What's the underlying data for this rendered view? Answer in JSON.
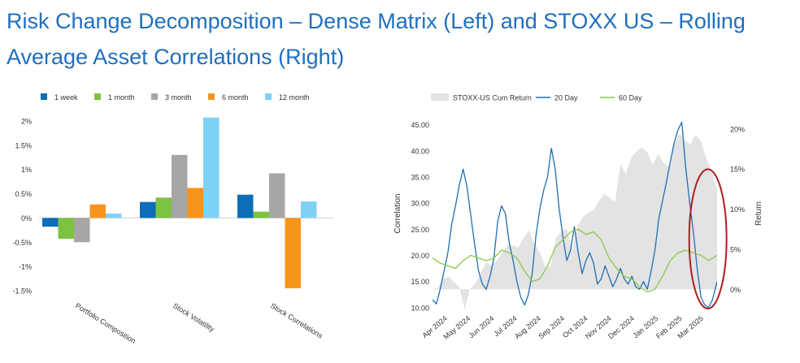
{
  "title": {
    "line1": "Risk Change Decomposition – Dense Matrix (Left) and STOXX US – Rolling",
    "line2": "Average Asset Correlations (Right)"
  },
  "chart_data": [
    {
      "type": "bar",
      "categories": [
        "Portfolio Composition",
        "Stock Volatility",
        "Stock Correlations"
      ],
      "series": [
        {
          "name": "1 week",
          "color": "#0e6db6",
          "values": [
            -0.18,
            0.33,
            0.48
          ]
        },
        {
          "name": "1 month",
          "color": "#7dc242",
          "values": [
            -0.43,
            0.42,
            0.13
          ]
        },
        {
          "name": "3 month",
          "color": "#a6a6a6",
          "values": [
            -0.5,
            1.3,
            0.92
          ]
        },
        {
          "name": "6 month",
          "color": "#f7941d",
          "values": [
            0.28,
            0.62,
            -1.45
          ]
        },
        {
          "name": "12 month",
          "color": "#7fd0f5",
          "values": [
            0.09,
            2.07,
            0.34
          ]
        }
      ],
      "yticks": [
        "2%",
        "1.5%",
        "1%",
        "0.5%",
        "0%",
        "-0.5%",
        "-1%",
        "-1.5%"
      ],
      "ytick_values": [
        2,
        1.5,
        1,
        0.5,
        0,
        -0.5,
        -1,
        -1.5
      ],
      "ylim": [
        -1.5,
        2.1
      ],
      "legend": "top",
      "grid": false
    },
    {
      "type": "line",
      "legend": "top",
      "grid": false,
      "ylabel_left": "Correlation",
      "ylabel_right": "Return",
      "ylim_left": [
        9.5,
        46.5
      ],
      "ylim_right": [
        -2.6,
        21.5
      ],
      "yticks_left": [
        "45.00",
        "40.00",
        "35.00",
        "30.00",
        "25.00",
        "20.00",
        "15.00",
        "10.00"
      ],
      "ytick_values_left": [
        45,
        40,
        35,
        30,
        25,
        20,
        15,
        10
      ],
      "yticks_right": [
        "20%",
        "15%",
        "10%",
        "5%",
        "0%"
      ],
      "ytick_values_right": [
        20,
        15,
        10,
        5,
        0
      ],
      "x_range": [
        "2024-03-08",
        "2025-03-14"
      ],
      "xticks": [
        "Apr 2024",
        "May 2024",
        "Jun 2024",
        "Jul 2024",
        "Aug 2024",
        "Sep 2024",
        "Oct 2024",
        "Nov 2024",
        "Dec 2024",
        "Jan 2025",
        "Feb 2025",
        "Mar 2025"
      ],
      "xtick_dates": [
        "2024-04-01",
        "2024-05-01",
        "2024-06-01",
        "2024-07-01",
        "2024-08-01",
        "2024-09-01",
        "2024-10-01",
        "2024-11-01",
        "2024-12-01",
        "2025-01-01",
        "2025-02-01",
        "2025-03-01"
      ],
      "highlight": {
        "shape": "ellipse",
        "color": "#b01e1e",
        "center_date": "2025-03-02",
        "y_min": 9.8,
        "y_max": 36.5
      },
      "series": [
        {
          "name": "STOXX-US Cum Return",
          "axis": "right",
          "style": "area",
          "color": "#e3e3e3",
          "points": [
            [
              "2024-03-08",
              0.0
            ],
            [
              "2024-03-15",
              0.2
            ],
            [
              "2024-03-22",
              1.3
            ],
            [
              "2024-03-29",
              1.6
            ],
            [
              "2024-04-05",
              0.9
            ],
            [
              "2024-04-12",
              0.3
            ],
            [
              "2024-04-19",
              -2.5
            ],
            [
              "2024-04-26",
              0.1
            ],
            [
              "2024-05-03",
              0.7
            ],
            [
              "2024-05-10",
              2.0
            ],
            [
              "2024-05-17",
              3.4
            ],
            [
              "2024-05-24",
              3.0
            ],
            [
              "2024-05-31",
              3.6
            ],
            [
              "2024-06-07",
              4.6
            ],
            [
              "2024-06-14",
              5.6
            ],
            [
              "2024-06-21",
              5.5
            ],
            [
              "2024-06-28",
              5.2
            ],
            [
              "2024-07-05",
              6.5
            ],
            [
              "2024-07-12",
              7.3
            ],
            [
              "2024-07-19",
              5.6
            ],
            [
              "2024-07-26",
              4.6
            ],
            [
              "2024-08-02",
              2.8
            ],
            [
              "2024-08-09",
              2.9
            ],
            [
              "2024-08-16",
              6.5
            ],
            [
              "2024-08-23",
              7.2
            ],
            [
              "2024-08-30",
              7.6
            ],
            [
              "2024-09-06",
              4.9
            ],
            [
              "2024-09-13",
              7.9
            ],
            [
              "2024-09-20",
              9.0
            ],
            [
              "2024-09-27",
              9.6
            ],
            [
              "2024-10-04",
              9.9
            ],
            [
              "2024-10-11",
              11.0
            ],
            [
              "2024-10-18",
              11.9
            ],
            [
              "2024-10-25",
              11.4
            ],
            [
              "2024-11-01",
              10.9
            ],
            [
              "2024-11-08",
              15.6
            ],
            [
              "2024-11-15",
              14.4
            ],
            [
              "2024-11-22",
              16.4
            ],
            [
              "2024-11-29",
              17.2
            ],
            [
              "2024-12-06",
              17.7
            ],
            [
              "2024-12-13",
              17.1
            ],
            [
              "2024-12-20",
              15.5
            ],
            [
              "2024-12-27",
              16.9
            ],
            [
              "2025-01-03",
              15.8
            ],
            [
              "2025-01-10",
              15.3
            ],
            [
              "2025-01-17",
              18.0
            ],
            [
              "2025-01-24",
              19.4
            ],
            [
              "2025-01-31",
              18.6
            ],
            [
              "2025-02-07",
              18.1
            ],
            [
              "2025-02-14",
              19.3
            ],
            [
              "2025-02-21",
              18.5
            ],
            [
              "2025-02-28",
              16.3
            ],
            [
              "2025-03-07",
              14.8
            ],
            [
              "2025-03-14",
              12.4
            ]
          ]
        },
        {
          "name": "20 Day",
          "axis": "left",
          "style": "line",
          "color": "#1f6fb5",
          "points": [
            [
              "2024-03-08",
              11.5
            ],
            [
              "2024-03-13",
              10.7
            ],
            [
              "2024-03-18",
              13.5
            ],
            [
              "2024-03-23",
              17.0
            ],
            [
              "2024-03-28",
              20.5
            ],
            [
              "2024-04-02",
              26.0
            ],
            [
              "2024-04-07",
              29.5
            ],
            [
              "2024-04-12",
              33.5
            ],
            [
              "2024-04-17",
              36.5
            ],
            [
              "2024-04-22",
              33.0
            ],
            [
              "2024-04-27",
              27.5
            ],
            [
              "2024-05-02",
              22.0
            ],
            [
              "2024-05-07",
              17.0
            ],
            [
              "2024-05-12",
              14.5
            ],
            [
              "2024-05-17",
              13.5
            ],
            [
              "2024-05-22",
              16.0
            ],
            [
              "2024-05-27",
              19.5
            ],
            [
              "2024-06-01",
              26.5
            ],
            [
              "2024-06-06",
              29.5
            ],
            [
              "2024-06-11",
              28.0
            ],
            [
              "2024-06-16",
              22.5
            ],
            [
              "2024-06-21",
              19.0
            ],
            [
              "2024-06-26",
              15.0
            ],
            [
              "2024-07-01",
              12.0
            ],
            [
              "2024-07-06",
              10.5
            ],
            [
              "2024-07-11",
              12.5
            ],
            [
              "2024-07-16",
              16.5
            ],
            [
              "2024-07-21",
              24.0
            ],
            [
              "2024-07-26",
              29.0
            ],
            [
              "2024-07-31",
              32.5
            ],
            [
              "2024-08-05",
              35.0
            ],
            [
              "2024-08-10",
              40.5
            ],
            [
              "2024-08-15",
              36.5
            ],
            [
              "2024-08-20",
              29.0
            ],
            [
              "2024-08-25",
              23.5
            ],
            [
              "2024-08-30",
              19.0
            ],
            [
              "2024-09-04",
              21.0
            ],
            [
              "2024-09-09",
              25.5
            ],
            [
              "2024-09-14",
              20.5
            ],
            [
              "2024-09-19",
              16.5
            ],
            [
              "2024-09-24",
              19.0
            ],
            [
              "2024-09-29",
              20.5
            ],
            [
              "2024-10-04",
              18.5
            ],
            [
              "2024-10-09",
              14.5
            ],
            [
              "2024-10-14",
              15.5
            ],
            [
              "2024-10-19",
              18.0
            ],
            [
              "2024-10-24",
              16.0
            ],
            [
              "2024-10-29",
              14.0
            ],
            [
              "2024-11-03",
              15.5
            ],
            [
              "2024-11-08",
              17.5
            ],
            [
              "2024-11-13",
              15.5
            ],
            [
              "2024-11-18",
              14.5
            ],
            [
              "2024-11-23",
              16.0
            ],
            [
              "2024-11-28",
              14.0
            ],
            [
              "2024-12-03",
              13.5
            ],
            [
              "2024-12-08",
              15.0
            ],
            [
              "2024-12-13",
              13.5
            ],
            [
              "2024-12-18",
              17.0
            ],
            [
              "2024-12-23",
              21.0
            ],
            [
              "2024-12-28",
              27.0
            ],
            [
              "2025-01-02",
              30.5
            ],
            [
              "2025-01-07",
              34.0
            ],
            [
              "2025-01-12",
              38.0
            ],
            [
              "2025-01-17",
              41.5
            ],
            [
              "2025-01-22",
              44.0
            ],
            [
              "2025-01-27",
              45.5
            ],
            [
              "2025-02-01",
              37.0
            ],
            [
              "2025-02-06",
              30.5
            ],
            [
              "2025-02-11",
              24.5
            ],
            [
              "2025-02-16",
              17.5
            ],
            [
              "2025-02-21",
              12.0
            ],
            [
              "2025-02-26",
              10.5
            ],
            [
              "2025-03-03",
              10.0
            ],
            [
              "2025-03-08",
              11.5
            ],
            [
              "2025-03-14",
              15.0
            ]
          ]
        },
        {
          "name": "60 Day",
          "axis": "left",
          "style": "line",
          "color": "#8cc84b",
          "points": [
            [
              "2024-03-08",
              19.5
            ],
            [
              "2024-03-18",
              18.5
            ],
            [
              "2024-03-28",
              18.0
            ],
            [
              "2024-04-07",
              17.5
            ],
            [
              "2024-04-17",
              19.0
            ],
            [
              "2024-04-27",
              20.0
            ],
            [
              "2024-05-07",
              19.5
            ],
            [
              "2024-05-17",
              19.0
            ],
            [
              "2024-05-27",
              19.5
            ],
            [
              "2024-06-06",
              21.0
            ],
            [
              "2024-06-16",
              20.5
            ],
            [
              "2024-06-26",
              19.5
            ],
            [
              "2024-07-06",
              17.0
            ],
            [
              "2024-07-16",
              15.0
            ],
            [
              "2024-07-26",
              15.5
            ],
            [
              "2024-08-05",
              18.0
            ],
            [
              "2024-08-15",
              21.5
            ],
            [
              "2024-08-25",
              23.0
            ],
            [
              "2024-09-04",
              24.5
            ],
            [
              "2024-09-14",
              25.0
            ],
            [
              "2024-09-24",
              24.0
            ],
            [
              "2024-10-04",
              24.5
            ],
            [
              "2024-10-14",
              23.0
            ],
            [
              "2024-10-24",
              19.5
            ],
            [
              "2024-11-03",
              17.5
            ],
            [
              "2024-11-13",
              16.0
            ],
            [
              "2024-11-23",
              15.5
            ],
            [
              "2024-12-03",
              14.0
            ],
            [
              "2024-12-13",
              13.0
            ],
            [
              "2024-12-23",
              13.5
            ],
            [
              "2025-01-02",
              16.0
            ],
            [
              "2025-01-12",
              19.0
            ],
            [
              "2025-01-22",
              20.5
            ],
            [
              "2025-02-01",
              21.0
            ],
            [
              "2025-02-11",
              20.5
            ],
            [
              "2025-02-21",
              20.0
            ],
            [
              "2025-03-03",
              19.0
            ],
            [
              "2025-03-14",
              20.0
            ]
          ]
        }
      ]
    }
  ]
}
